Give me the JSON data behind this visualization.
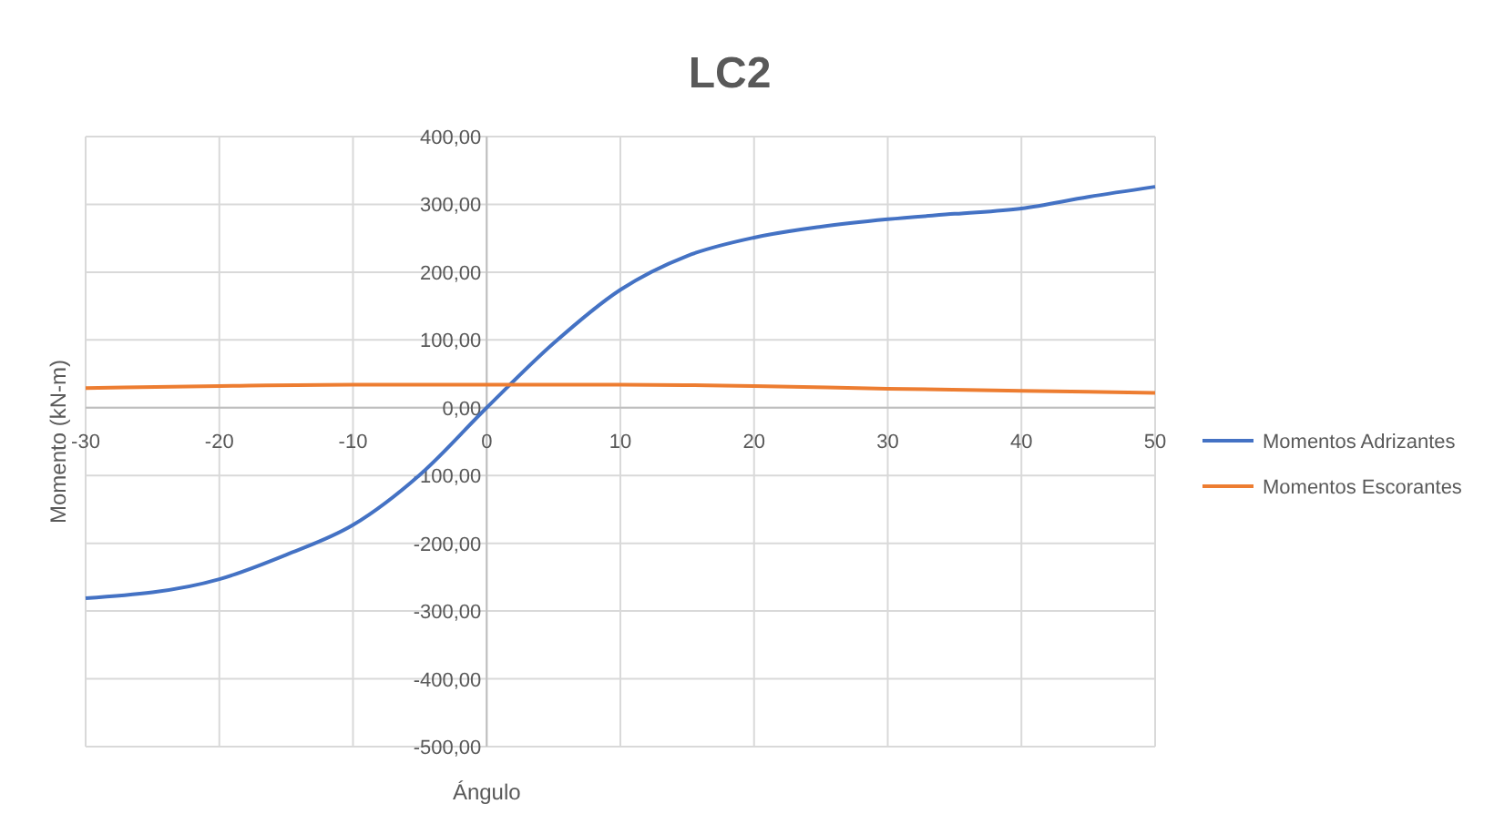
{
  "chart_data": {
    "type": "line",
    "title": "LC2",
    "xlabel": "Ángulo",
    "ylabel": "Momento (kN-m)",
    "xlim": [
      -30,
      50
    ],
    "xticks": [
      -30,
      -20,
      -10,
      0,
      10,
      20,
      30,
      40,
      50
    ],
    "ylim": [
      -500,
      400
    ],
    "yticks": [
      {
        "value": -500,
        "label": "-500,00"
      },
      {
        "value": -400,
        "label": "-400,00"
      },
      {
        "value": -300,
        "label": "-300,00"
      },
      {
        "value": -200,
        "label": "-200,00"
      },
      {
        "value": -100,
        "label": "-100,00"
      },
      {
        "value": 0,
        "label": "0,00"
      },
      {
        "value": 100,
        "label": "100,00"
      },
      {
        "value": 200,
        "label": "200,00"
      },
      {
        "value": 300,
        "label": "300,00"
      },
      {
        "value": 400,
        "label": "400,00"
      }
    ],
    "grid": true,
    "legend": "right",
    "marker": "none",
    "line_style": "solid",
    "series": [
      {
        "name": "Momentos Adrizantes",
        "color": "#4472c4",
        "x": [
          -30,
          -20,
          -15,
          -10,
          -5,
          0,
          5,
          10,
          15,
          20,
          25,
          30,
          35,
          40,
          45,
          50
        ],
        "values": [
          -281,
          -253,
          -217,
          -173,
          -99,
          0,
          95,
          174,
          224,
          251,
          267,
          278,
          286,
          294,
          311,
          326
        ]
      },
      {
        "name": "Momentos Escorantes",
        "color": "#ed7d31",
        "x": [
          -30,
          -20,
          -10,
          0,
          10,
          20,
          30,
          40,
          50
        ],
        "values": [
          29,
          32,
          34,
          34,
          34,
          32,
          28,
          25,
          22
        ]
      }
    ]
  }
}
